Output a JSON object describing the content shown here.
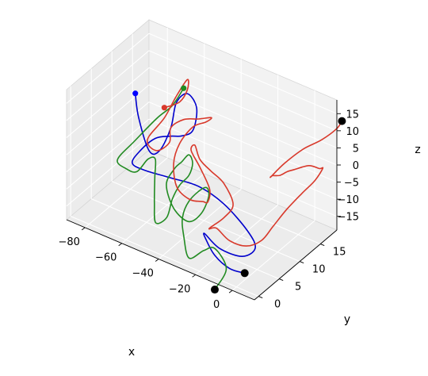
{
  "chart_data": {
    "type": "line-3d",
    "title": "",
    "axes": {
      "x": {
        "label": "x",
        "range": [
          -90,
          12
        ],
        "ticks": [
          -80,
          -60,
          -40,
          -20,
          0
        ]
      },
      "y": {
        "label": "y",
        "range": [
          -1,
          19
        ],
        "ticks": [
          0,
          5,
          10,
          15
        ]
      },
      "z": {
        "label": "z",
        "range": [
          -19,
          19
        ],
        "ticks": [
          -15,
          -10,
          -5,
          0,
          5,
          10,
          15
        ]
      }
    },
    "grid": true,
    "pane_color": "#ececec",
    "series": [
      {
        "color": "#0000cc",
        "start_marker_color": "#0000ff",
        "end_marker_color": "#000000",
        "points": [
          [
            -84,
            13,
            5
          ],
          [
            -80,
            12,
            0
          ],
          [
            -72,
            11,
            -7
          ],
          [
            -64,
            10,
            -4
          ],
          [
            -58,
            10,
            4
          ],
          [
            -55,
            10,
            12
          ],
          [
            -49,
            10,
            16
          ],
          [
            -44,
            10,
            13
          ],
          [
            -46,
            10,
            6
          ],
          [
            -52,
            10,
            3
          ],
          [
            -56,
            9,
            3
          ],
          [
            -62,
            8,
            2
          ],
          [
            -68,
            7,
            -2
          ],
          [
            -70,
            6,
            -5
          ],
          [
            -61,
            5,
            -4
          ],
          [
            -47,
            5,
            -3
          ],
          [
            -32,
            5,
            -2
          ],
          [
            -18,
            5,
            -4
          ],
          [
            -5,
            5,
            -9
          ],
          [
            -1,
            5,
            -13
          ],
          [
            -8,
            5,
            -17
          ],
          [
            -18,
            4,
            -16
          ],
          [
            -24,
            3,
            -12
          ],
          [
            -21,
            2,
            -12
          ],
          [
            -14,
            1,
            -14
          ],
          [
            -6,
            1,
            -16
          ],
          [
            0,
            2,
            -17
          ]
        ]
      },
      {
        "color": "#228b22",
        "start_marker_color": "#228b22",
        "end_marker_color": "#000000",
        "points": [
          [
            -60,
            14,
            11
          ],
          [
            -64,
            13,
            6
          ],
          [
            -70,
            12,
            2
          ],
          [
            -80,
            11,
            -6
          ],
          [
            -87,
            10,
            -12
          ],
          [
            -80,
            9,
            -12
          ],
          [
            -72,
            8,
            -10
          ],
          [
            -66,
            8,
            -5
          ],
          [
            -62,
            8,
            -4
          ],
          [
            -60,
            7,
            -8
          ],
          [
            -58,
            6,
            -14
          ],
          [
            -55,
            5,
            -18
          ],
          [
            -49,
            5,
            -15
          ],
          [
            -46,
            5,
            -9
          ],
          [
            -42,
            5,
            -4
          ],
          [
            -37,
            5,
            0
          ],
          [
            -35,
            5,
            4
          ],
          [
            -37,
            5,
            6
          ],
          [
            -41,
            5,
            3
          ],
          [
            -45,
            5,
            0
          ],
          [
            -47,
            4,
            -4
          ],
          [
            -43,
            4,
            -10
          ],
          [
            -35,
            4,
            -12
          ],
          [
            -28,
            4,
            -8
          ],
          [
            -24,
            4,
            -2
          ],
          [
            -26,
            4,
            0
          ],
          [
            -32,
            3,
            -4
          ],
          [
            -36,
            3,
            -10
          ],
          [
            -33,
            2,
            -14
          ],
          [
            -28,
            1,
            -18
          ],
          [
            -20,
            1,
            -14
          ],
          [
            -14,
            1,
            -12
          ],
          [
            -10,
            2,
            -18
          ],
          [
            -14,
            1,
            -24
          ]
        ]
      },
      {
        "color": "#d8392b",
        "start_marker_color": "#d8392b",
        "end_marker_color": "#000000",
        "points": [
          [
            -66,
            12,
            6
          ],
          [
            -60,
            13,
            8
          ],
          [
            -58,
            14,
            11
          ],
          [
            -58,
            14,
            14
          ],
          [
            -62,
            13,
            9
          ],
          [
            -66,
            12,
            3
          ],
          [
            -73,
            11,
            -4
          ],
          [
            -68,
            11,
            -6
          ],
          [
            -61,
            11,
            -2
          ],
          [
            -58,
            10,
            4
          ],
          [
            -51,
            10,
            8
          ],
          [
            -43,
            10,
            10
          ],
          [
            -36,
            10,
            12
          ],
          [
            -39,
            10,
            10
          ],
          [
            -46,
            10,
            7
          ],
          [
            -51,
            9,
            2
          ],
          [
            -52,
            8,
            -3
          ],
          [
            -48,
            7,
            -8
          ],
          [
            -41,
            7,
            -10
          ],
          [
            -34,
            7,
            -9
          ],
          [
            -29,
            6,
            -7
          ],
          [
            -28,
            6,
            -3
          ],
          [
            -33,
            6,
            2
          ],
          [
            -38,
            6,
            6
          ],
          [
            -36,
            6,
            8
          ],
          [
            -31,
            5,
            6
          ],
          [
            -25,
            5,
            4
          ],
          [
            -18,
            5,
            2
          ],
          [
            -13,
            5,
            -3
          ],
          [
            -18,
            5,
            -8
          ],
          [
            -26,
            5,
            -13
          ],
          [
            -22,
            5,
            -12
          ],
          [
            -15,
            5,
            -14
          ],
          [
            -8,
            6,
            -15
          ],
          [
            -2,
            7,
            -13
          ],
          [
            2,
            8,
            -9
          ],
          [
            7,
            9,
            -4
          ],
          [
            13,
            10,
            1
          ],
          [
            18,
            11,
            5
          ],
          [
            20,
            12,
            8
          ],
          [
            16,
            13,
            6
          ],
          [
            8,
            14,
            4
          ],
          [
            0,
            14,
            1
          ],
          [
            -6,
            15,
            -2
          ],
          [
            -10,
            15,
            -4
          ],
          [
            -14,
            15,
            -5
          ],
          [
            -17,
            16,
            -7
          ],
          [
            -12,
            17,
            -3
          ],
          [
            -4,
            18,
            2
          ],
          [
            6,
            18,
            7
          ],
          [
            14,
            18,
            12
          ],
          [
            17,
            18,
            15
          ]
        ]
      }
    ]
  }
}
